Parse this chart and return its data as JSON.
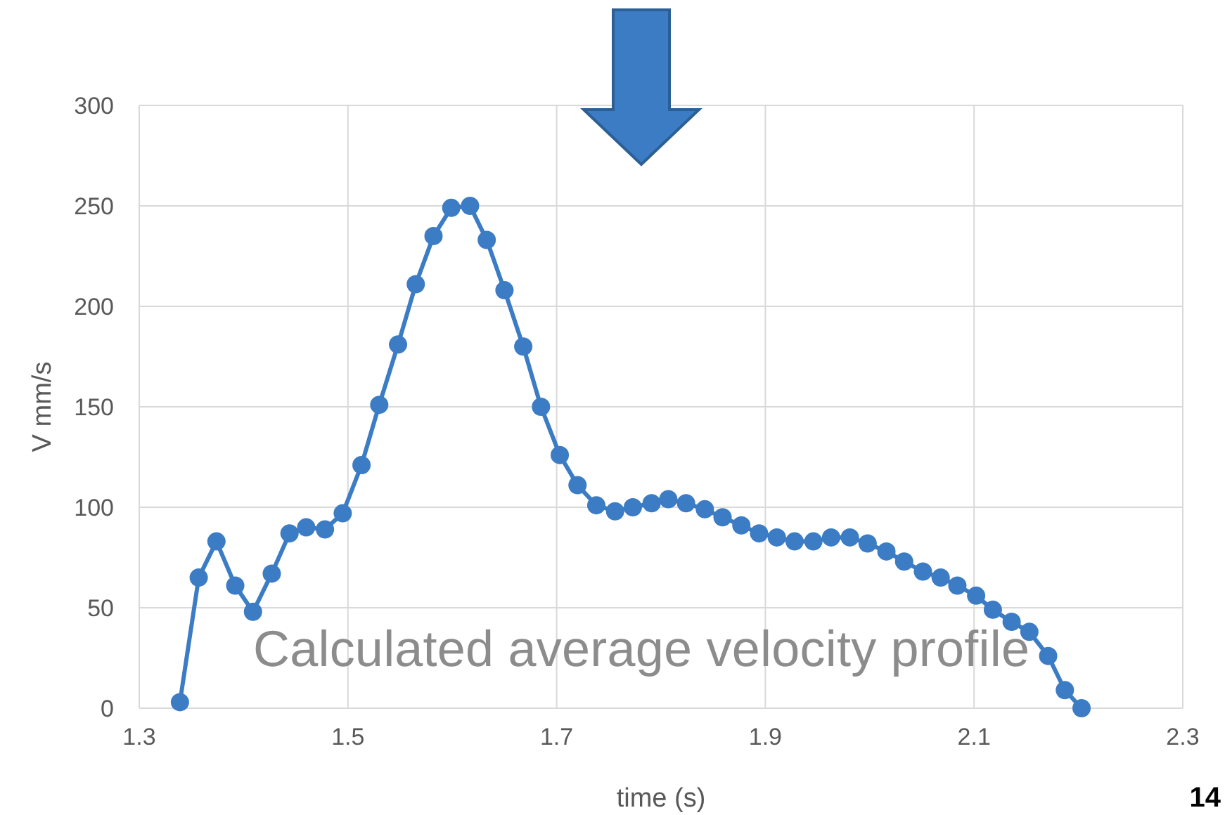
{
  "chart_data": {
    "type": "line",
    "xlabel": "time (s)",
    "ylabel": "V mm/s",
    "annotations": [
      "Calculated average velocity profile",
      "14"
    ],
    "x": [
      1.339,
      1.357,
      1.374,
      1.392,
      1.409,
      1.427,
      1.444,
      1.46,
      1.478,
      1.495,
      1.513,
      1.53,
      1.548,
      1.565,
      1.582,
      1.599,
      1.617,
      1.633,
      1.65,
      1.668,
      1.685,
      1.703,
      1.72,
      1.738,
      1.756,
      1.773,
      1.791,
      1.807,
      1.824,
      1.842,
      1.859,
      1.877,
      1.894,
      1.911,
      1.928,
      1.946,
      1.963,
      1.981,
      1.998,
      2.016,
      2.033,
      2.051,
      2.068,
      2.084,
      2.102,
      2.118,
      2.136,
      2.153,
      2.171,
      2.187,
      2.203
    ],
    "series": [
      {
        "color": "#3b7cc4",
        "values": [
          3,
          65,
          83,
          61,
          48,
          67,
          87,
          90,
          89,
          97,
          121,
          151,
          181,
          211,
          235,
          249,
          250,
          233,
          208,
          180,
          150,
          126,
          111,
          101,
          98,
          100,
          102,
          104,
          102,
          99,
          95,
          91,
          87,
          85,
          83,
          83,
          85,
          85,
          82,
          78,
          73,
          68,
          65,
          61,
          56,
          49,
          43,
          38,
          26,
          9,
          0
        ]
      }
    ],
    "xlim": [
      1.3,
      2.3
    ],
    "xticks": [
      1.3,
      1.5,
      1.7,
      1.9,
      2.1,
      2.3
    ],
    "ylim": [
      0,
      300
    ],
    "yticks": [
      0,
      50,
      100,
      150,
      200,
      250,
      300
    ],
    "grid": true,
    "marker": "circle",
    "line_style": "solid"
  }
}
